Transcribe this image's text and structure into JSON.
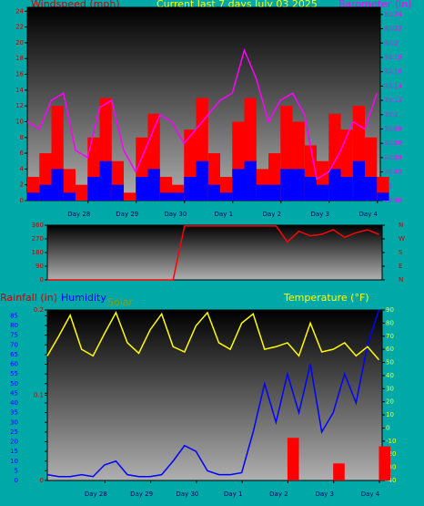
{
  "chart_data": [
    {
      "type": "combo",
      "title": "Current last 7 days July 03 2025",
      "y_label": "Windspeed (mph)",
      "y2_label": "Barometer (in)",
      "x": [
        0,
        0.25,
        0.5,
        0.75,
        1,
        1.25,
        1.5,
        1.75,
        2,
        2.25,
        2.5,
        2.75,
        3,
        3.25,
        3.5,
        3.75,
        4,
        4.25,
        4.5,
        4.75,
        5,
        5.25,
        5.5,
        5.75,
        6,
        6.25,
        6.5,
        6.75,
        7,
        7.25
      ],
      "xlim": [
        0,
        7.32
      ],
      "xticks": [
        {
          "value": 1.26,
          "label": "Day 28"
        },
        {
          "value": 2.26,
          "label": "Day 29"
        },
        {
          "value": 3.26,
          "label": "Day 30"
        },
        {
          "value": 4.26,
          "label": "Day 1"
        },
        {
          "value": 5.26,
          "label": "Day 2"
        },
        {
          "value": 6.26,
          "label": "Day 3"
        },
        {
          "value": 7.26,
          "label": "Day 4"
        }
      ],
      "ylim": [
        0,
        24.5
      ],
      "yticks": [
        0,
        2,
        4,
        6,
        8,
        10,
        12,
        14,
        16,
        18,
        20,
        22,
        24
      ],
      "ycolor": "#cc0000",
      "y2lim": [
        29.98,
        30.25
      ],
      "y2ticks": [
        29.98,
        30,
        30.02,
        30.04,
        30.06,
        30.08,
        30.1,
        30.12,
        30.14,
        30.16,
        30.18,
        30.2,
        30.22,
        30.24
      ],
      "y2color": "#ff00ff",
      "series": [
        {
          "type": "bar",
          "color": "#ff0000",
          "values": [
            3,
            6,
            12,
            4,
            2,
            8,
            13,
            5,
            1,
            8,
            11,
            3,
            2,
            9,
            13,
            6,
            3,
            10,
            13,
            4,
            6,
            12,
            10,
            7,
            5,
            11,
            9,
            12,
            8,
            3
          ]
        },
        {
          "type": "bar",
          "color": "#0000ff",
          "values": [
            1,
            2,
            4,
            1,
            0,
            3,
            5,
            2,
            0,
            3,
            4,
            1,
            1,
            3,
            5,
            2,
            1,
            4,
            5,
            2,
            2,
            4,
            4,
            3,
            2,
            4,
            3,
            5,
            3,
            1
          ]
        },
        {
          "type": "line",
          "axis": "y2",
          "color": "#ff00ff",
          "values": [
            30.09,
            30.08,
            30.12,
            30.13,
            30.05,
            30.04,
            30.11,
            30.12,
            30.05,
            30.02,
            30.06,
            30.1,
            30.09,
            30.06,
            30.08,
            30.1,
            30.12,
            30.13,
            30.19,
            30.15,
            30.09,
            30.12,
            30.13,
            30.1,
            30.01,
            30.02,
            30.05,
            30.09,
            30.08,
            30.13
          ]
        }
      ]
    },
    {
      "type": "combo",
      "x": [
        0,
        0.25,
        0.5,
        0.75,
        1,
        1.25,
        1.5,
        1.75,
        2,
        2.25,
        2.5,
        2.75,
        3,
        3.25,
        3.5,
        3.75,
        4,
        4.25,
        4.5,
        4.75,
        5,
        5.25,
        5.5,
        5.75,
        6,
        6.25,
        6.5,
        6.75,
        7,
        7.25
      ],
      "xlim": [
        0,
        7.32
      ],
      "ylim": [
        0,
        360
      ],
      "yticks": [
        0,
        90,
        180,
        270,
        360
      ],
      "ycolor": "#cc0000",
      "y2lim": [
        0,
        360
      ],
      "y2ticks": [
        {
          "value": 360,
          "label": "N"
        },
        {
          "value": 270,
          "label": "W"
        },
        {
          "value": 180,
          "label": "S"
        },
        {
          "value": 90,
          "label": "E"
        },
        {
          "value": 0,
          "label": "N"
        }
      ],
      "y2color": "#cc0000",
      "series": [
        {
          "type": "line",
          "color": "#ff0000",
          "values": [
            0,
            0,
            0,
            0,
            0,
            0,
            0,
            0,
            0,
            0,
            0,
            0,
            355,
            355,
            355,
            355,
            355,
            355,
            355,
            355,
            355,
            250,
            320,
            290,
            300,
            330,
            280,
            310,
            330,
            300
          ]
        }
      ]
    },
    {
      "type": "combo",
      "y3_label": "Rainfall (in)",
      "y_label": "Humidity",
      "solar_label": "Solar",
      "y2_label": "Temperature (°F)",
      "x": [
        0,
        0.25,
        0.5,
        0.75,
        1,
        1.25,
        1.5,
        1.75,
        2,
        2.25,
        2.5,
        2.75,
        3,
        3.25,
        3.5,
        3.75,
        4,
        4.25,
        4.5,
        4.75,
        5,
        5.25,
        5.5,
        5.75,
        6,
        6.25,
        6.5,
        6.75,
        7,
        7.25
      ],
      "xlim": [
        0,
        7.32
      ],
      "xticks": [
        {
          "value": 1.26,
          "label": "Day 28"
        },
        {
          "value": 2.26,
          "label": "Day 29"
        },
        {
          "value": 3.26,
          "label": "Day 30"
        },
        {
          "value": 4.26,
          "label": "Day 1"
        },
        {
          "value": 5.26,
          "label": "Day 2"
        },
        {
          "value": 6.26,
          "label": "Day 3"
        },
        {
          "value": 7.26,
          "label": "Day 4"
        }
      ],
      "ylim": [
        0,
        88
      ],
      "yticks": [
        0,
        5,
        10,
        15,
        20,
        25,
        30,
        35,
        40,
        45,
        50,
        55,
        60,
        65,
        70,
        75,
        80,
        85
      ],
      "ycolor": "#0000ff",
      "y3lim": [
        0,
        0.2
      ],
      "y3ticks": [
        0,
        0.1,
        0.2
      ],
      "y3color": "#cc0000",
      "y2lim": [
        -40,
        90
      ],
      "y2ticks": [
        -40,
        -30,
        -20,
        -10,
        0,
        10,
        20,
        30,
        40,
        50,
        60,
        70,
        80,
        90
      ],
      "y2color": "#ffff00",
      "series": [
        {
          "type": "bar",
          "axis": "y3",
          "color": "#ff0000",
          "values": [
            0,
            0,
            0,
            0,
            0,
            0,
            0,
            0,
            0,
            0,
            0,
            0,
            0,
            0,
            0,
            0,
            0,
            0,
            0,
            0,
            0,
            0.05,
            0,
            0,
            0,
            0.02,
            0,
            0,
            0,
            0.04
          ]
        },
        {
          "type": "line",
          "color": "#0000ff",
          "values": [
            3,
            2,
            2,
            3,
            2,
            8,
            10,
            3,
            2,
            2,
            3,
            10,
            18,
            15,
            5,
            3,
            3,
            4,
            25,
            50,
            30,
            55,
            35,
            60,
            25,
            35,
            55,
            40,
            70,
            88
          ]
        },
        {
          "type": "line",
          "axis": "y2",
          "color": "#ffff00",
          "values": [
            55,
            70,
            86,
            60,
            55,
            72,
            88,
            65,
            57,
            75,
            87,
            62,
            58,
            78,
            88,
            65,
            60,
            80,
            87,
            60,
            62,
            65,
            55,
            80,
            58,
            60,
            65,
            55,
            62,
            52
          ]
        }
      ]
    }
  ]
}
